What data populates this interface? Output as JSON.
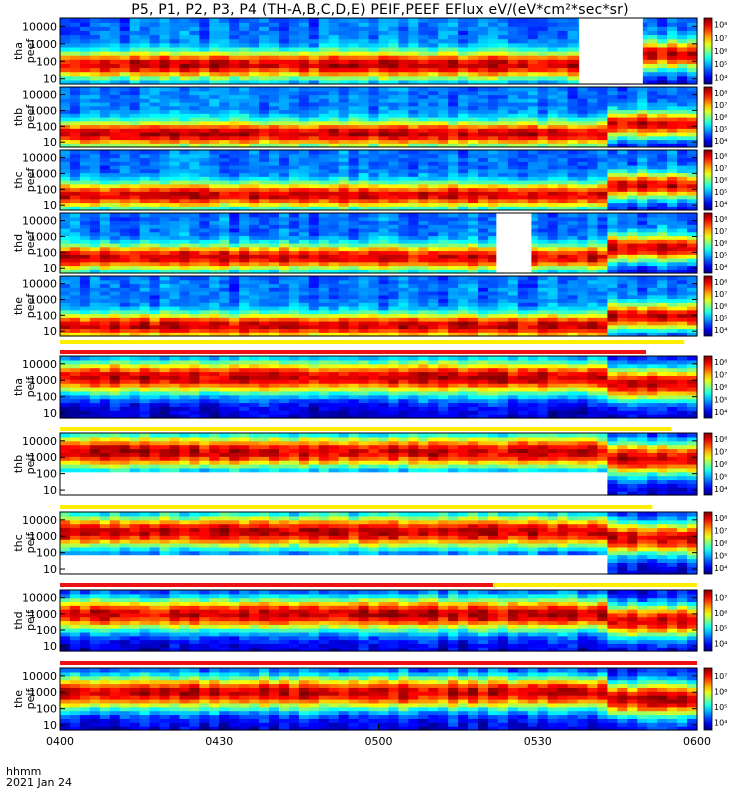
{
  "title": "P5, P1, P2, P3, P4 (TH-A,B,C,D,E) PEIF,PEEF EFlux eV/(eV*cm²*sec*sr)",
  "time_axis": {
    "row1": "hhmm",
    "row2": "2021 Jan 24",
    "ticks": [
      "0400",
      "0430",
      "0500",
      "0530",
      "0600"
    ]
  },
  "colors": {
    "flag_red": "#ee1111",
    "flag_yellow": "#ffee00",
    "gap": "#ffffff"
  },
  "chart_data": [
    {
      "type": "heatmap",
      "panel": "electrons",
      "ylabel": [
        "tha",
        "peef"
      ],
      "yscale": "log",
      "ytick_labels": [
        "10",
        "100",
        "1000",
        "10000"
      ],
      "ylim": [
        5,
        30000
      ],
      "colorbar_ticks": [
        "10⁴",
        "10⁵",
        "10⁶",
        "10⁷",
        "10⁸"
      ],
      "gaps": [
        [
          0.815,
          0.915
        ]
      ],
      "peak_log_energy": 1.85
    },
    {
      "type": "heatmap",
      "panel": "electrons",
      "ylabel": [
        "thb",
        "peef"
      ],
      "yscale": "log",
      "ytick_labels": [
        "10",
        "100",
        "1000",
        "10000"
      ],
      "ylim": [
        5,
        30000
      ],
      "colorbar_ticks": [
        "10⁴",
        "10⁵",
        "10⁶",
        "10⁷",
        "10⁸"
      ],
      "gaps": [],
      "peak_log_energy": 1.6
    },
    {
      "type": "heatmap",
      "panel": "electrons",
      "ylabel": [
        "thc",
        "peef"
      ],
      "yscale": "log",
      "ytick_labels": [
        "10",
        "100",
        "1000",
        "10000"
      ],
      "ylim": [
        5,
        30000
      ],
      "colorbar_ticks": [
        "10⁴",
        "10⁵",
        "10⁶",
        "10⁷",
        "10⁸"
      ],
      "gaps": [],
      "peak_log_energy": 1.7
    },
    {
      "type": "heatmap",
      "panel": "electrons",
      "ylabel": [
        "thd",
        "peef"
      ],
      "yscale": "log",
      "ytick_labels": [
        "10",
        "100",
        "1000",
        "10000"
      ],
      "ylim": [
        5,
        30000
      ],
      "colorbar_ticks": [
        "10⁴",
        "10⁵",
        "10⁶",
        "10⁷",
        "10⁸"
      ],
      "gaps": [
        [
          0.685,
          0.74
        ]
      ],
      "peak_log_energy": 1.75
    },
    {
      "type": "heatmap",
      "panel": "electrons",
      "ylabel": [
        "the",
        "peef"
      ],
      "yscale": "log",
      "ytick_labels": [
        "10",
        "100",
        "1000",
        "10000"
      ],
      "ylim": [
        5,
        30000
      ],
      "colorbar_ticks": [
        "10⁴",
        "10⁵",
        "10⁶",
        "10⁷",
        "10⁸"
      ],
      "gaps": [],
      "peak_log_energy": 1.4
    },
    {
      "type": "heatmap",
      "panel": "ions",
      "ylabel": [
        "tha",
        "peif"
      ],
      "yscale": "log",
      "ytick_labels": [
        "10",
        "100",
        "1000",
        "10000"
      ],
      "ylim": [
        5,
        30000
      ],
      "colorbar_ticks": [
        "10⁴",
        "10⁵",
        "10⁶",
        "10⁷",
        "10⁸"
      ],
      "gaps": [],
      "peak_log_energy": 3.2
    },
    {
      "type": "heatmap",
      "panel": "ions",
      "ylabel": [
        "thb",
        "peif"
      ],
      "yscale": "log",
      "ytick_labels": [
        "10",
        "100",
        "1000",
        "10000"
      ],
      "ylim": [
        5,
        30000
      ],
      "colorbar_ticks": [
        "10⁴",
        "10⁵",
        "10⁶",
        "10⁷",
        "10⁸"
      ],
      "gaps": [],
      "peak_log_energy": 3.35,
      "low_energy_cutoff_log": 2.1
    },
    {
      "type": "heatmap",
      "panel": "ions",
      "ylabel": [
        "thc",
        "peif"
      ],
      "yscale": "log",
      "ytick_labels": [
        "10",
        "100",
        "1000",
        "10000"
      ],
      "ylim": [
        5,
        30000
      ],
      "colorbar_ticks": [
        "10⁴",
        "10⁵",
        "10⁶",
        "10⁷",
        "10⁸"
      ],
      "gaps": [],
      "peak_log_energy": 3.3,
      "low_energy_cutoff_log": 1.85
    },
    {
      "type": "heatmap",
      "panel": "ions",
      "ylabel": [
        "thd",
        "peif"
      ],
      "yscale": "log",
      "ytick_labels": [
        "10",
        "100",
        "1000",
        "10000"
      ],
      "ylim": [
        5,
        30000
      ],
      "colorbar_ticks": [
        "10⁴",
        "10⁵",
        "10⁶",
        "10⁷"
      ],
      "gaps": [],
      "peak_log_energy": 3.0
    },
    {
      "type": "heatmap",
      "panel": "ions",
      "ylabel": [
        "the",
        "peif"
      ],
      "yscale": "log",
      "ytick_labels": [
        "10",
        "100",
        "1000",
        "10000"
      ],
      "ylim": [
        5,
        30000
      ],
      "colorbar_ticks": [
        "10⁴",
        "10⁵",
        "10⁶",
        "10⁷"
      ],
      "gaps": [],
      "peak_log_energy": 3.0
    }
  ]
}
